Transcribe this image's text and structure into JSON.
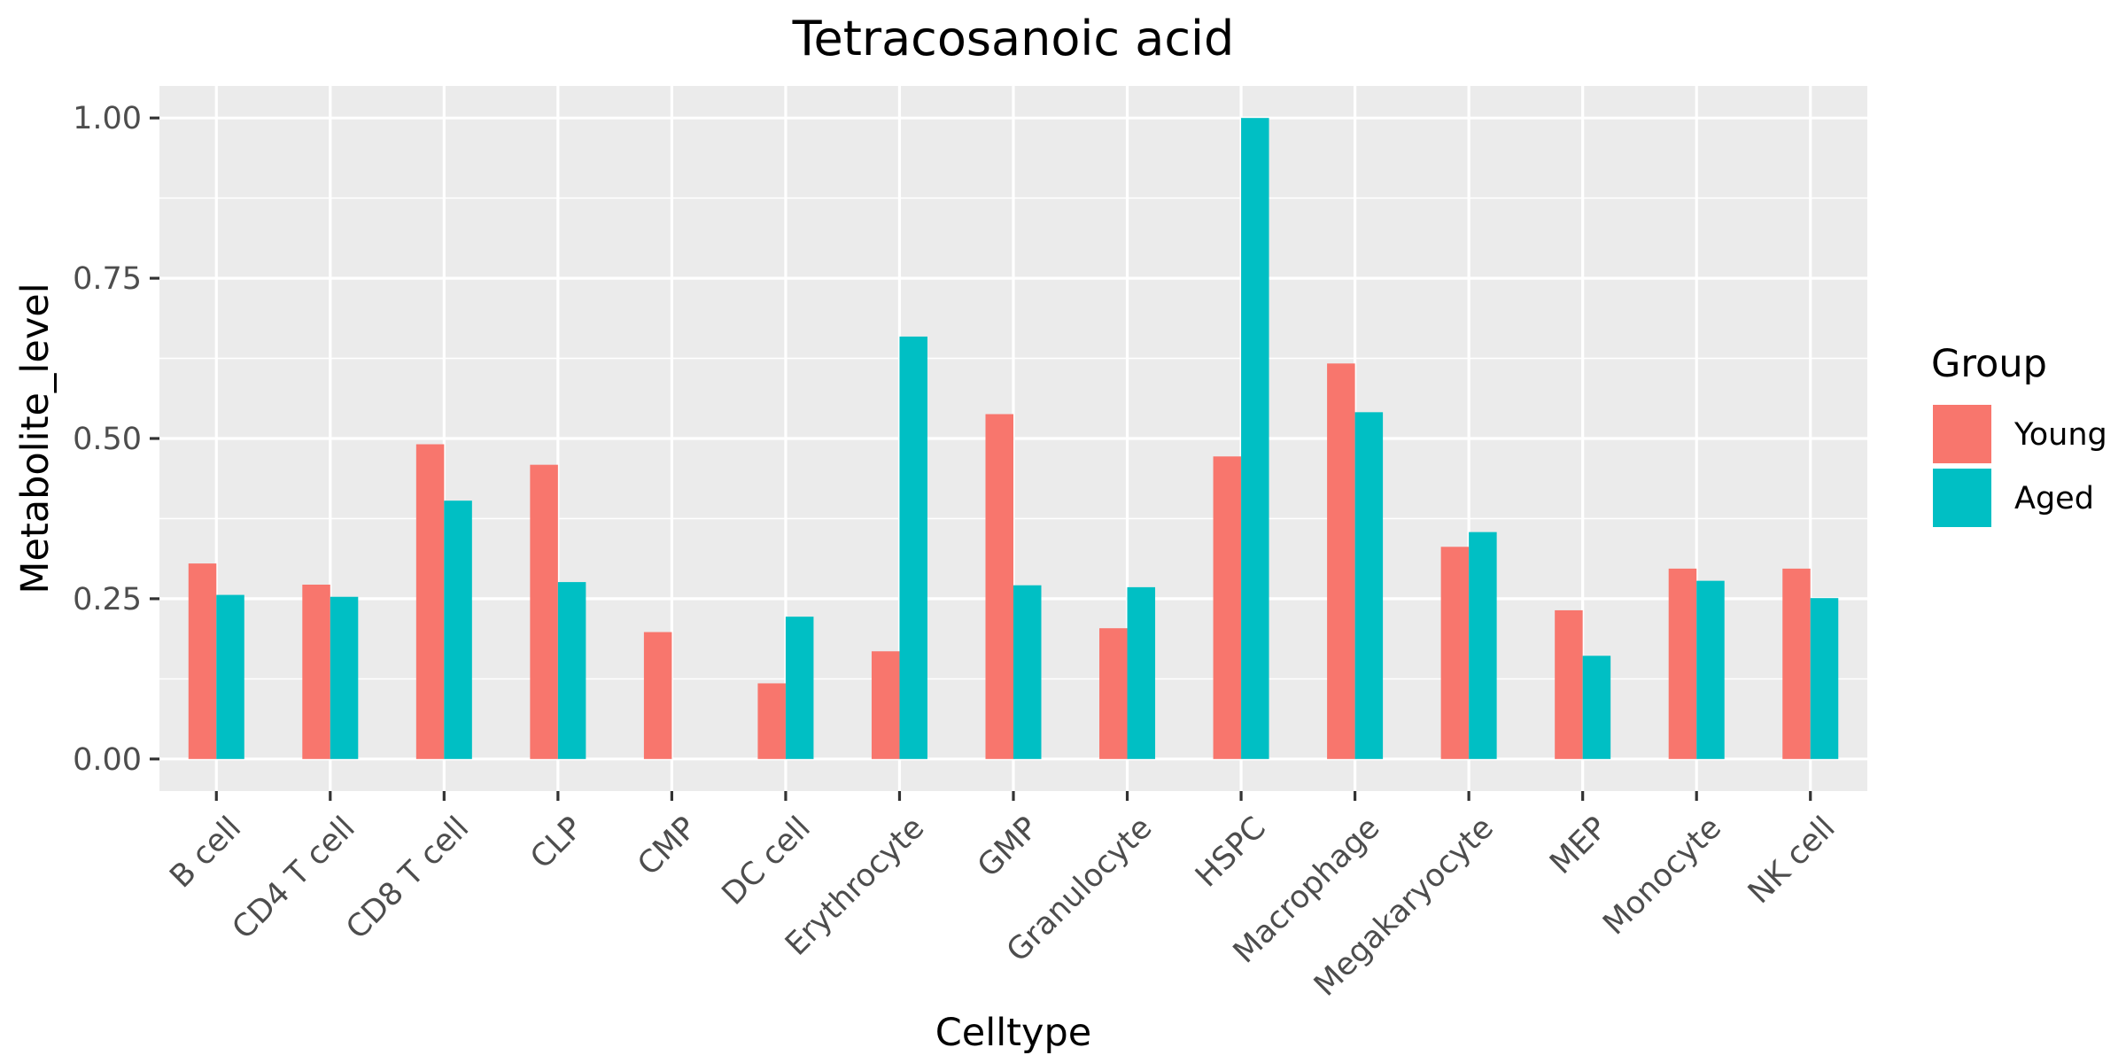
{
  "chart_data": {
    "type": "bar",
    "title": "Tetracosanoic acid",
    "xlabel": "Celltype",
    "ylabel": "Metabolite_level",
    "categories": [
      "B cell",
      "CD4 T cell",
      "CD8 T cell",
      "CLP",
      "CMP",
      "DC cell",
      "Erythrocyte",
      "GMP",
      "Granulocyte",
      "HSPC",
      "Macrophage",
      "Megakaryocyte",
      "MEP",
      "Monocyte",
      "NK cell"
    ],
    "series": [
      {
        "name": "Young",
        "color": "#F8766D",
        "values": [
          0.305,
          0.272,
          0.491,
          0.459,
          0.198,
          0.118,
          0.168,
          0.538,
          0.204,
          0.472,
          0.617,
          0.331,
          0.232,
          0.297,
          0.297
        ]
      },
      {
        "name": "Aged",
        "color": "#00BFC4",
        "values": [
          0.256,
          0.253,
          0.403,
          0.276,
          null,
          0.222,
          0.659,
          0.271,
          0.268,
          1.0,
          0.541,
          0.354,
          0.161,
          0.278,
          0.251
        ]
      }
    ],
    "y_ticks": [
      "0.00",
      "0.25",
      "0.50",
      "0.75",
      "1.00"
    ],
    "ylim": [
      -0.05,
      1.05
    ],
    "grid": true,
    "legend": {
      "title": "Group",
      "position": "right"
    },
    "panel_background": "#EBEBEB",
    "grid_color": "#FFFFFF"
  }
}
